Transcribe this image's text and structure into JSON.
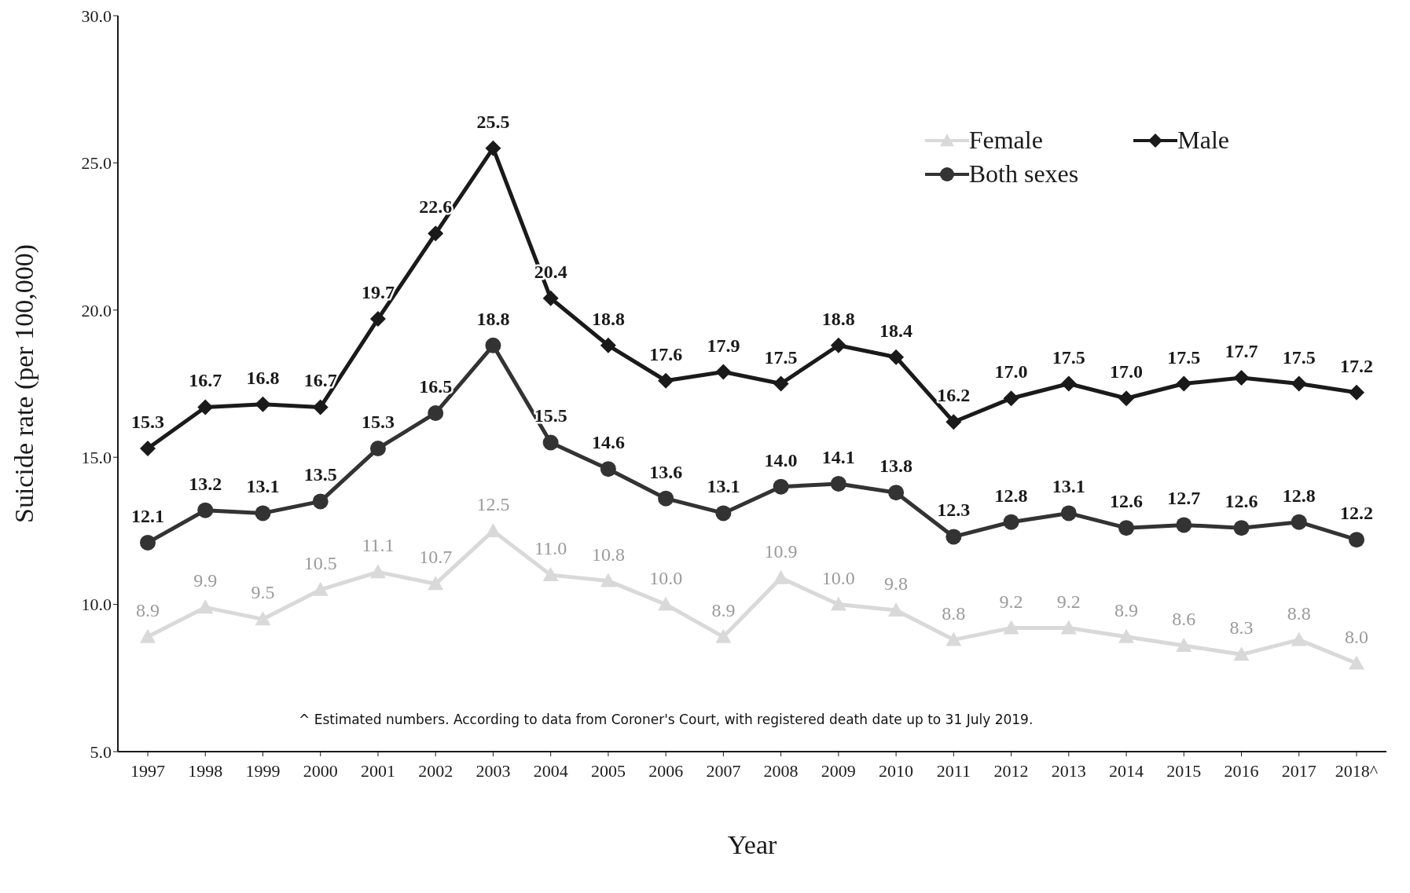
{
  "chart_data": {
    "type": "line",
    "xlabel": "Year",
    "ylabel": "Suicide rate (per 100,000)",
    "categories": [
      "1997",
      "1998",
      "1999",
      "2000",
      "2001",
      "2002",
      "2003",
      "2004",
      "2005",
      "2006",
      "2007",
      "2008",
      "2009",
      "2010",
      "2011",
      "2012",
      "2013",
      "2014",
      "2015",
      "2016",
      "2017",
      "2018^"
    ],
    "ylim": [
      5,
      30
    ],
    "yticks": [
      {
        "value": 5,
        "label": "5.0"
      },
      {
        "value": 10,
        "label": "10.0"
      },
      {
        "value": 15,
        "label": "15.0"
      },
      {
        "value": 20,
        "label": "20.0"
      },
      {
        "value": 25,
        "label": "25.0"
      },
      {
        "value": 30,
        "label": "30.0"
      }
    ],
    "grid": false,
    "legend": "top right",
    "series": [
      {
        "name": "Female",
        "color": "#d9d9d9",
        "marker": "triangle",
        "values": [
          8.9,
          9.9,
          9.5,
          10.5,
          11.1,
          10.7,
          12.5,
          11.0,
          10.8,
          10.0,
          8.9,
          10.9,
          10.0,
          9.8,
          8.8,
          9.2,
          9.2,
          8.9,
          8.6,
          8.3,
          8.8,
          8.0
        ],
        "value_labels": [
          "8.9",
          "9.9",
          "9.5",
          "10.5",
          "11.1",
          "10.7",
          "12.5",
          "11.0",
          "10.8",
          "10.0",
          "8.9",
          "10.9",
          "10.0",
          "9.8",
          "8.8",
          "9.2",
          "9.2",
          "8.9",
          "8.6",
          "8.3",
          "8.8",
          "8.0"
        ]
      },
      {
        "name": "Male",
        "color": "#1a1a1a",
        "marker": "diamond",
        "values": [
          15.3,
          16.7,
          16.8,
          16.7,
          19.7,
          22.6,
          25.5,
          20.4,
          18.8,
          17.6,
          17.9,
          17.5,
          18.8,
          18.4,
          16.2,
          17.0,
          17.5,
          17.0,
          17.5,
          17.7,
          17.5,
          17.2
        ],
        "value_labels": [
          "15.3",
          "16.7",
          "16.8",
          "16.7",
          "19.7",
          "22.6",
          "25.5",
          "20.4",
          "18.8",
          "17.6",
          "17.9",
          "17.5",
          "18.8",
          "18.4",
          "16.2",
          "17.0",
          "17.5",
          "17.0",
          "17.5",
          "17.7",
          "17.5",
          "17.2"
        ]
      },
      {
        "name": "Both sexes",
        "color": "#333333",
        "marker": "circle",
        "values": [
          12.1,
          13.2,
          13.1,
          13.5,
          15.3,
          16.5,
          18.8,
          15.5,
          14.6,
          13.6,
          13.1,
          14.0,
          14.1,
          13.8,
          12.3,
          12.8,
          13.1,
          12.6,
          12.7,
          12.6,
          12.8,
          12.2
        ],
        "value_labels": [
          "12.1",
          "13.2",
          "13.1",
          "13.5",
          "15.3",
          "16.5",
          "18.8",
          "15.5",
          "14.6",
          "13.6",
          "13.1",
          "14.0",
          "14.1",
          "13.8",
          "12.3",
          "12.8",
          "13.1",
          "12.6",
          "12.7",
          "12.6",
          "12.8",
          "12.2"
        ]
      }
    ],
    "annotations": [
      "^ Estimated numbers. According to data from Coroner's Court, with registered death date up to 31 July 2019."
    ]
  }
}
